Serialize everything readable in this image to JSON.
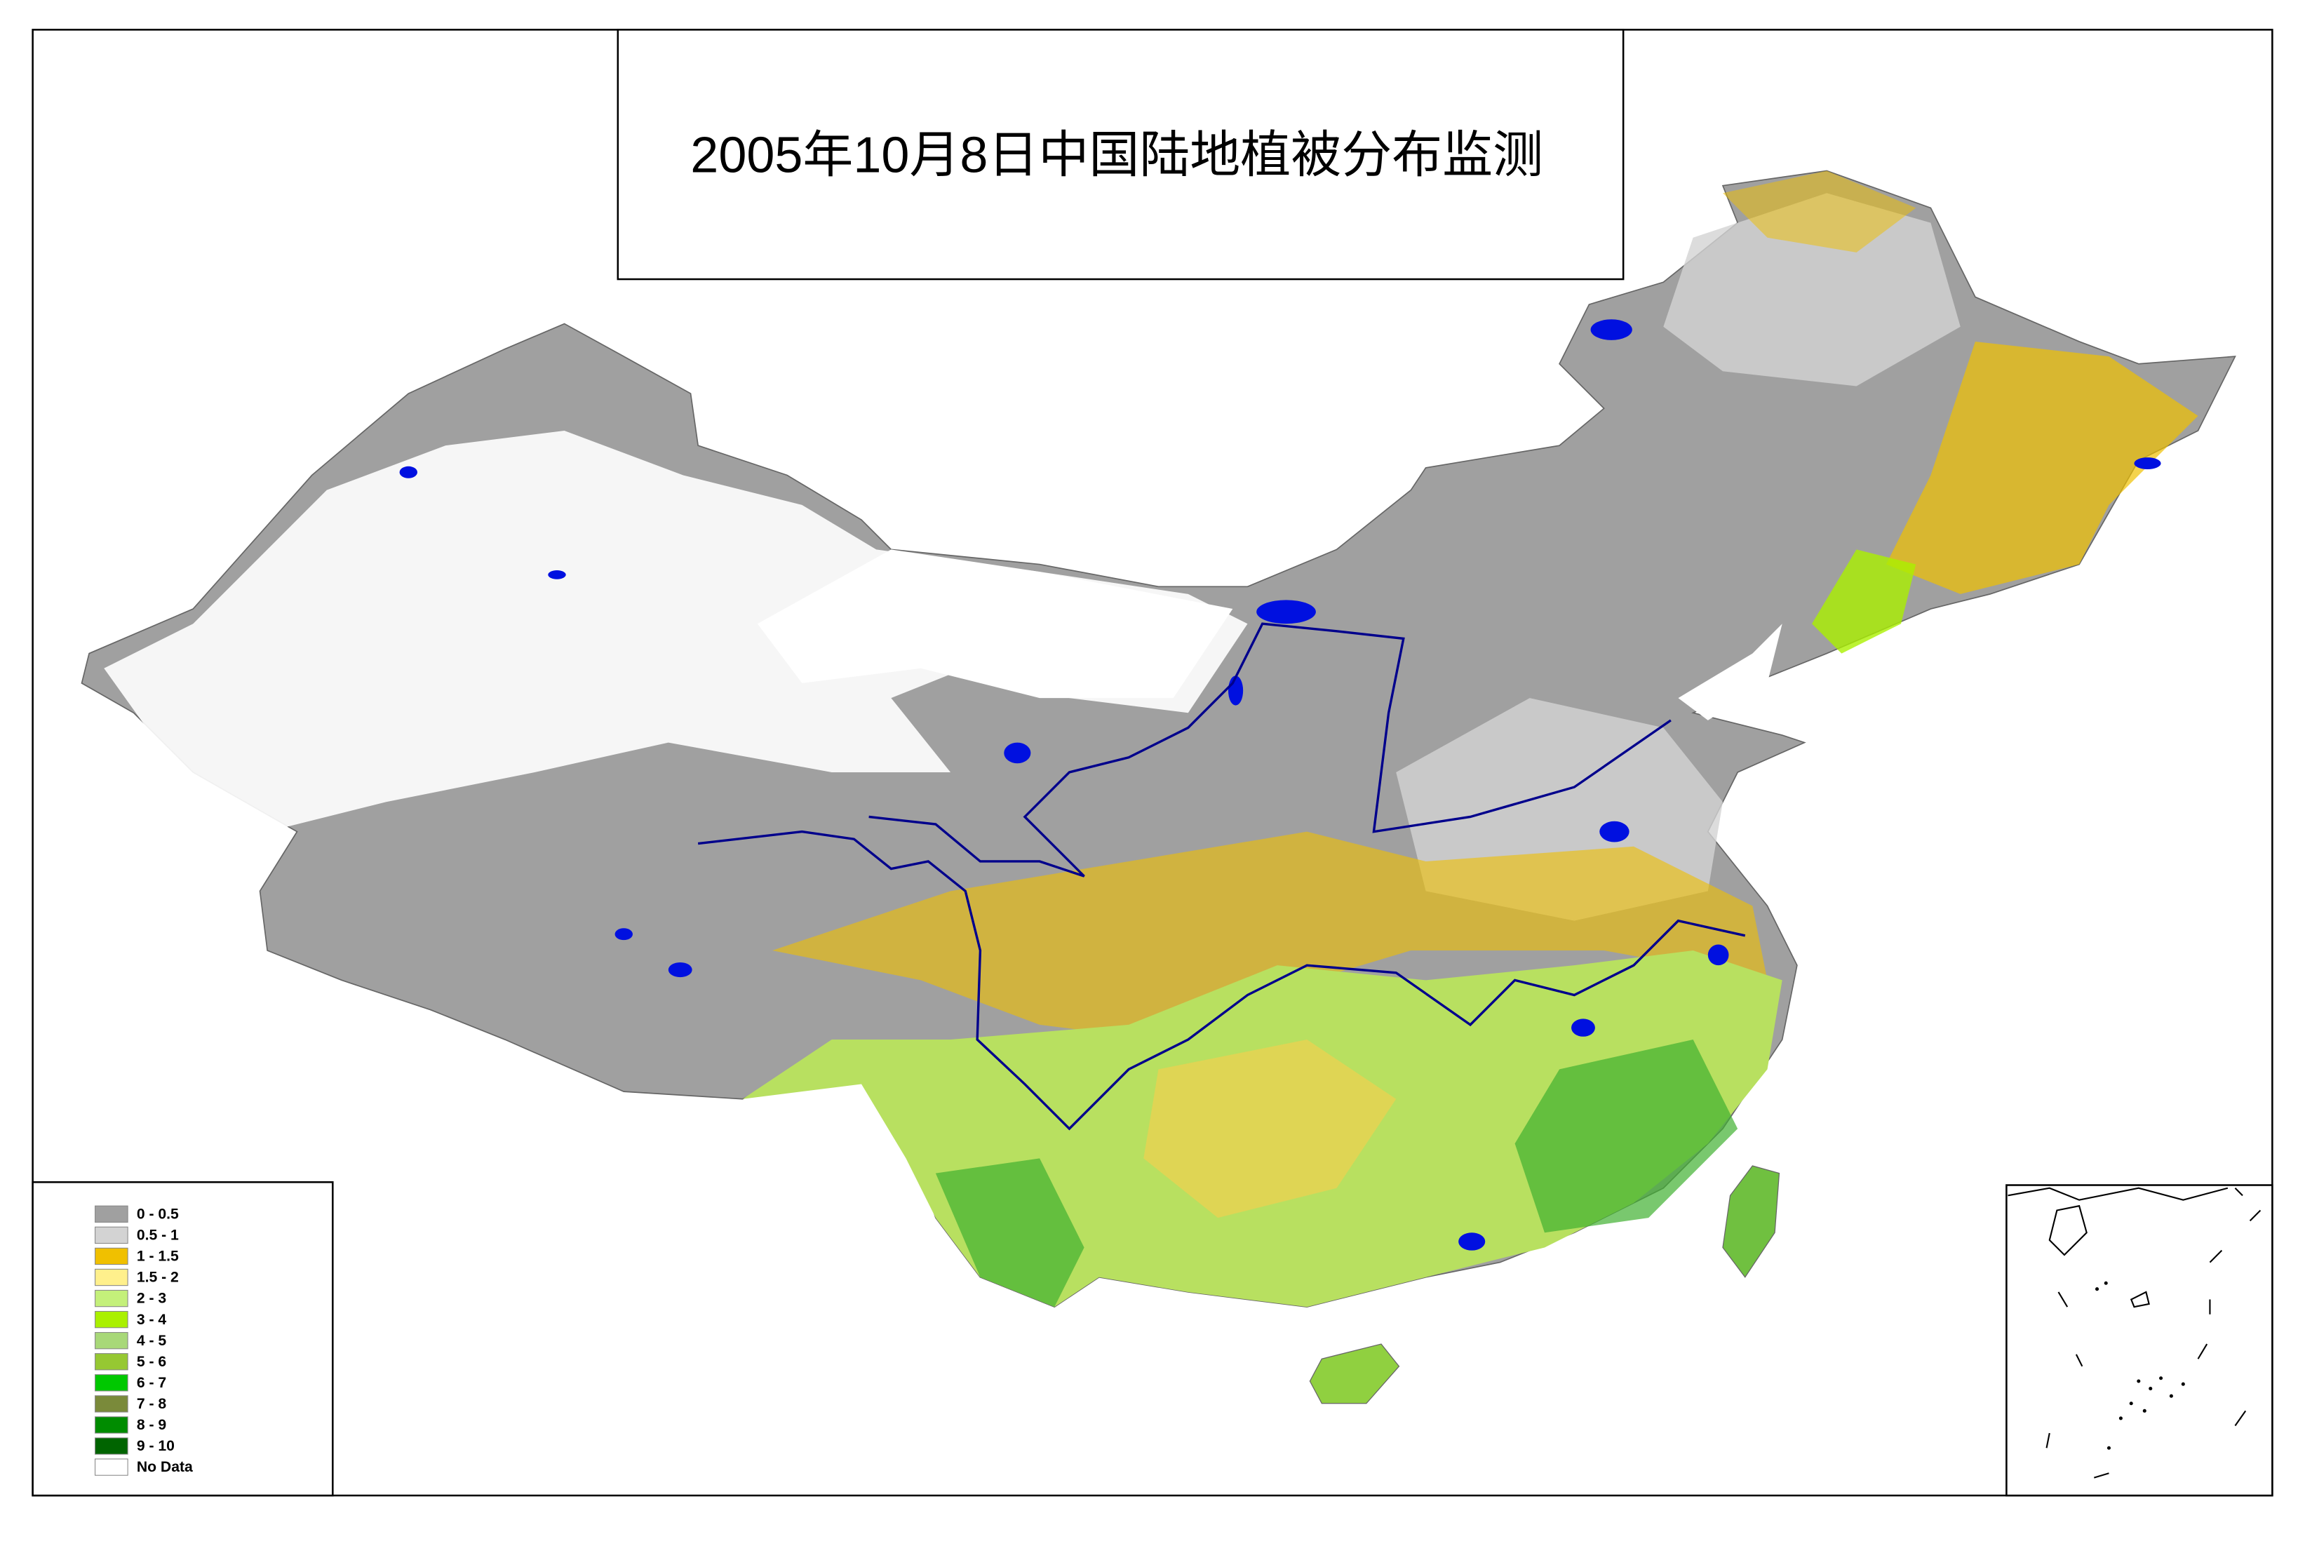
{
  "title": "2005年10月8日中国陆地植被分布监测",
  "legend": {
    "items": [
      {
        "label": "0 - 0.5",
        "color": "#a0a0a0"
      },
      {
        "label": "0.5 - 1",
        "color": "#d3d3d3"
      },
      {
        "label": "1 - 1.5",
        "color": "#f0c000"
      },
      {
        "label": "1.5 - 2",
        "color": "#fff08c"
      },
      {
        "label": "2 - 3",
        "color": "#c4f07a"
      },
      {
        "label": "3 - 4",
        "color": "#aaf000"
      },
      {
        "label": "4 - 5",
        "color": "#a8d878"
      },
      {
        "label": "5 - 6",
        "color": "#96c832"
      },
      {
        "label": "6 - 7",
        "color": "#00c800"
      },
      {
        "label": "7 - 8",
        "color": "#7a8a3a"
      },
      {
        "label": "8 - 9",
        "color": "#008c00"
      },
      {
        "label": "9 - 10",
        "color": "#006400"
      },
      {
        "label": "No Data",
        "color": "#ffffff"
      }
    ]
  }
}
